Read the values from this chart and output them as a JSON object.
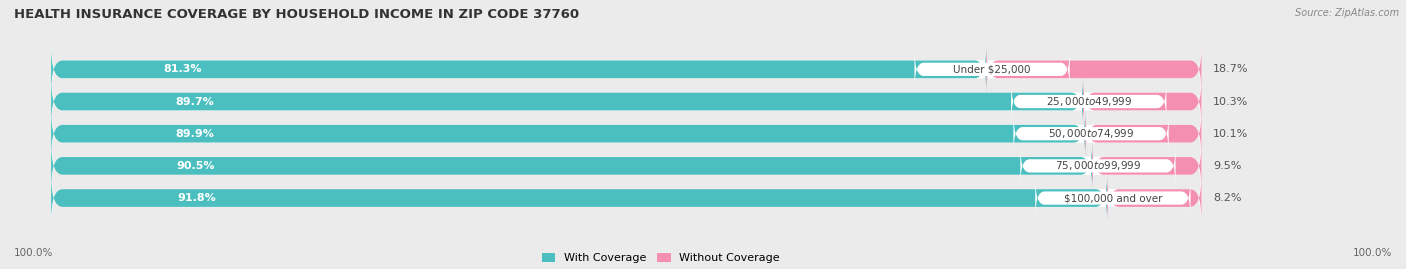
{
  "title": "HEALTH INSURANCE COVERAGE BY HOUSEHOLD INCOME IN ZIP CODE 37760",
  "source": "Source: ZipAtlas.com",
  "categories": [
    "Under $25,000",
    "$25,000 to $49,999",
    "$50,000 to $74,999",
    "$75,000 to $99,999",
    "$100,000 and over"
  ],
  "with_coverage": [
    81.3,
    89.7,
    89.9,
    90.5,
    91.8
  ],
  "without_coverage": [
    18.7,
    10.3,
    10.1,
    9.5,
    8.2
  ],
  "color_coverage": "#4bbfbf",
  "color_no_coverage": "#f48fb1",
  "bg_color": "#ebebeb",
  "bar_bg_color": "#ffffff",
  "title_fontsize": 9.5,
  "label_fontsize": 8,
  "cat_fontsize": 7.5,
  "tick_fontsize": 7.5,
  "legend_fontsize": 8,
  "bar_height": 0.55,
  "bar_spacing": 1.0,
  "left_label": "100.0%",
  "right_label": "100.0%",
  "legend_with": "With Coverage",
  "legend_without": "Without Coverage"
}
